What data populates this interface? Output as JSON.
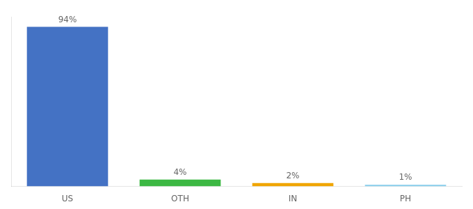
{
  "chart_data": {
    "type": "bar",
    "categories": [
      "US",
      "OTH",
      "IN",
      "PH"
    ],
    "values": [
      94,
      4,
      2,
      1
    ],
    "value_labels": [
      "94%",
      "4%",
      "2%",
      "1%"
    ],
    "colors": [
      "#4472c4",
      "#3cb843",
      "#f0a500",
      "#87ceeb"
    ],
    "ylim": [
      0,
      100
    ],
    "grid": false,
    "data_labels": true,
    "tick_labels": "x"
  }
}
